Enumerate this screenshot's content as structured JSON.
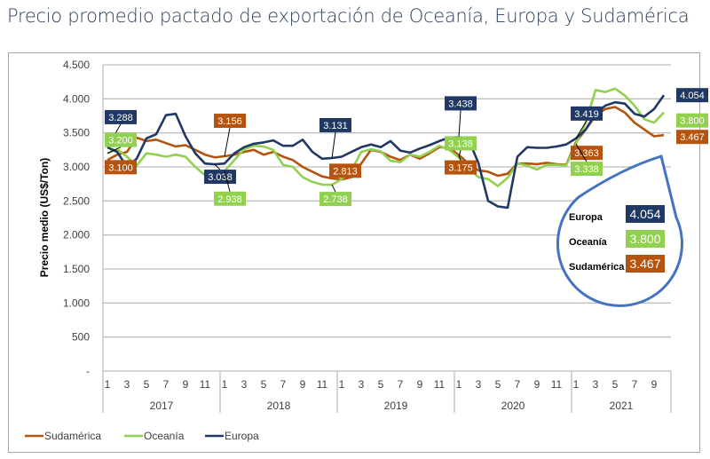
{
  "title": "Precio promedio pactado de exportación de Oceanía, Europa y Sudamérica",
  "chart_data": {
    "type": "line",
    "title": "Precio promedio pactado de exportación de Oceanía, Europa y Sudamérica",
    "xlabel": "",
    "ylabel": "Precio medio (US$/Ton)",
    "ylim": [
      0,
      4500
    ],
    "yticks": [
      0,
      500,
      1000,
      1500,
      2000,
      2500,
      3000,
      3500,
      4000,
      4500
    ],
    "ytick_labels": [
      "-",
      "500",
      "1.000",
      "1.500",
      "2.000",
      "2.500",
      "3.000",
      "3.500",
      "4.000",
      "4.500"
    ],
    "grid": true,
    "legend_position": "bottom-left",
    "years": [
      {
        "label": "2017",
        "months": 12
      },
      {
        "label": "2018",
        "months": 12
      },
      {
        "label": "2019",
        "months": 12
      },
      {
        "label": "2020",
        "months": 12
      },
      {
        "label": "2021",
        "months": 10
      }
    ],
    "month_tick_labels": [
      "1",
      "3",
      "5",
      "7",
      "9",
      "11"
    ],
    "series": [
      {
        "name": "Sudamérica",
        "color": "#b4540f",
        "values": [
          3100,
          3180,
          3220,
          3430,
          3380,
          3400,
          3350,
          3300,
          3320,
          3250,
          3180,
          3140,
          3156,
          3180,
          3220,
          3250,
          3180,
          3220,
          3150,
          3100,
          3000,
          2930,
          2860,
          2830,
          2813,
          2850,
          3050,
          3250,
          3220,
          3150,
          3100,
          3180,
          3120,
          3200,
          3290,
          3280,
          3175,
          3050,
          2950,
          2930,
          2870,
          2900,
          3050,
          3050,
          3040,
          3060,
          3040,
          3030,
          3363,
          3550,
          3750,
          3850,
          3880,
          3800,
          3650,
          3550,
          3450,
          3467
        ]
      },
      {
        "name": "Oceanía",
        "color": "#92d050",
        "values": [
          3200,
          3260,
          3150,
          3020,
          3200,
          3180,
          3150,
          3180,
          3150,
          3000,
          2880,
          2850,
          2938,
          3100,
          3260,
          3310,
          3300,
          3250,
          3030,
          3000,
          2850,
          2780,
          2740,
          2738,
          2820,
          2950,
          3220,
          3260,
          3230,
          3090,
          3070,
          3180,
          3150,
          3220,
          3310,
          3250,
          3138,
          2980,
          2850,
          2820,
          2720,
          2840,
          3050,
          3020,
          2960,
          3030,
          3030,
          3020,
          3338,
          3650,
          4130,
          4100,
          4150,
          4050,
          3900,
          3700,
          3650,
          3800
        ]
      },
      {
        "name": "Europa",
        "color": "#1f3864",
        "values": [
          3288,
          3220,
          3000,
          3120,
          3420,
          3480,
          3760,
          3780,
          3450,
          3200,
          3050,
          3038,
          3050,
          3200,
          3290,
          3340,
          3360,
          3390,
          3310,
          3310,
          3400,
          3220,
          3120,
          3131,
          3150,
          3220,
          3290,
          3330,
          3290,
          3380,
          3240,
          3210,
          3270,
          3320,
          3380,
          3430,
          3438,
          3400,
          3060,
          2500,
          2420,
          2400,
          3150,
          3290,
          3280,
          3280,
          3300,
          3330,
          3419,
          3550,
          3780,
          3900,
          3950,
          3930,
          3780,
          3740,
          3850,
          4054
        ]
      }
    ],
    "data_labels": [
      {
        "series": "Europa",
        "index": 0,
        "text": "3.288"
      },
      {
        "series": "Oceanía",
        "index": 0,
        "text": "3.200"
      },
      {
        "series": "Sudamérica",
        "index": 0,
        "text": "3.100"
      },
      {
        "series": "Sudamérica",
        "index": 12,
        "text": "3.156"
      },
      {
        "series": "Europa",
        "index": 11,
        "text": "3.038"
      },
      {
        "series": "Oceanía",
        "index": 12,
        "text": "2.938"
      },
      {
        "series": "Europa",
        "index": 23,
        "text": "3.131"
      },
      {
        "series": "Sudamérica",
        "index": 24,
        "text": "2.813"
      },
      {
        "series": "Oceanía",
        "index": 23,
        "text": "2.738"
      },
      {
        "series": "Europa",
        "index": 36,
        "text": "3.438"
      },
      {
        "series": "Oceanía",
        "index": 36,
        "text": "3.138"
      },
      {
        "series": "Sudamérica",
        "index": 36,
        "text": "3.175"
      },
      {
        "series": "Europa",
        "index": 48,
        "text": "3.419"
      },
      {
        "series": "Sudamérica",
        "index": 48,
        "text": "3.363"
      },
      {
        "series": "Oceanía",
        "index": 48,
        "text": "3.338"
      },
      {
        "series": "Europa",
        "index": 57,
        "text": "4.054"
      },
      {
        "series": "Oceanía",
        "index": 57,
        "text": "3.800"
      },
      {
        "series": "Sudamérica",
        "index": 57,
        "text": "3.467"
      }
    ],
    "callout": {
      "items": [
        {
          "label": "Europa",
          "value": "4.054",
          "color": "#1f3864"
        },
        {
          "label": "Oceanía",
          "value": "3.800",
          "color": "#92d050"
        },
        {
          "label": "Sudamérica",
          "value": "3.467",
          "color": "#b4540f"
        }
      ],
      "outline_color": "#4472c4"
    }
  }
}
